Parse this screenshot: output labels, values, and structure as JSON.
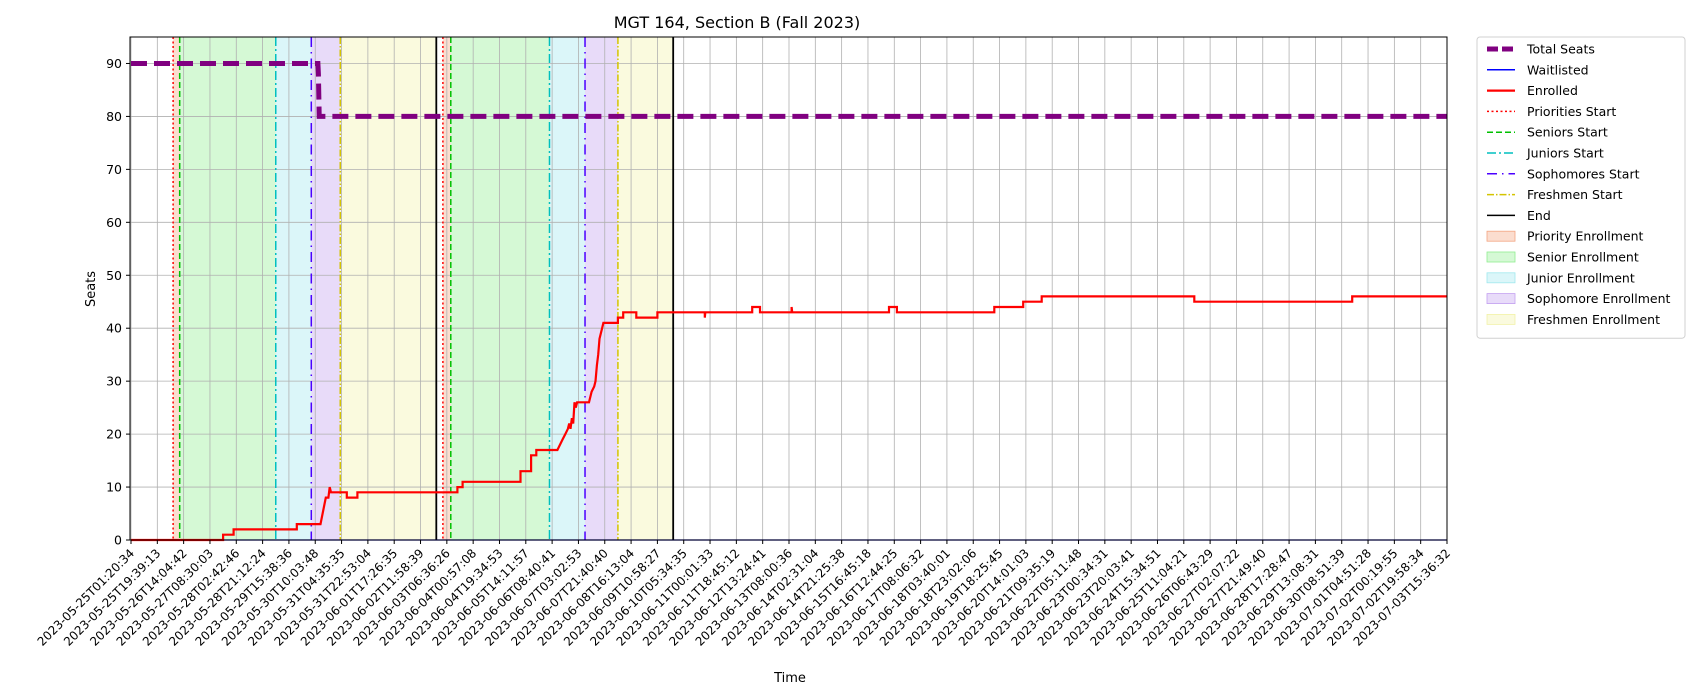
{
  "chart_data": {
    "type": "line",
    "title": "MGT 164, Section B (Fall 2023)",
    "xlabel": "Time",
    "ylabel": "Seats",
    "ylim": [
      0,
      95
    ],
    "yticks": [
      0,
      10,
      20,
      30,
      40,
      50,
      60,
      70,
      80,
      90
    ],
    "grid": true,
    "legend_position": "outside-right",
    "xtick_labels": [
      "2023-05-25T01:20:34",
      "2023-05-25T19:39:13",
      "2023-05-26T14:04:42",
      "2023-05-27T08:30:03",
      "2023-05-28T02:42:46",
      "2023-05-28T21:12:24",
      "2023-05-29T15:38:36",
      "2023-05-30T10:03:48",
      "2023-05-31T04:35:35",
      "2023-05-31T22:53:04",
      "2023-06-01T17:26:35",
      "2023-06-02T11:58:39",
      "2023-06-03T06:36:26",
      "2023-06-04T00:57:08",
      "2023-06-04T19:34:53",
      "2023-06-05T14:11:57",
      "2023-06-06T08:40:41",
      "2023-06-07T03:02:53",
      "2023-06-07T21:40:40",
      "2023-06-08T16:13:04",
      "2023-06-09T10:58:27",
      "2023-06-10T05:34:35",
      "2023-06-11T00:01:33",
      "2023-06-11T18:45:12",
      "2023-06-12T13:24:41",
      "2023-06-13T08:00:36",
      "2023-06-14T02:31:04",
      "2023-06-14T21:25:38",
      "2023-06-15T16:45:18",
      "2023-06-16T12:44:25",
      "2023-06-17T08:06:32",
      "2023-06-18T03:40:01",
      "2023-06-18T23:02:06",
      "2023-06-19T18:25:45",
      "2023-06-20T14:01:03",
      "2023-06-21T09:35:19",
      "2023-06-22T05:11:48",
      "2023-06-23T00:34:31",
      "2023-06-23T20:03:41",
      "2023-06-24T15:34:51",
      "2023-06-25T11:04:21",
      "2023-06-26T06:43:29",
      "2023-06-27T02:07:22",
      "2023-06-27T21:49:40",
      "2023-06-28T17:28:47",
      "2023-06-29T13:08:31",
      "2023-06-30T08:51:39",
      "2023-07-01T04:51:28",
      "2023-07-02T00:19:55",
      "2023-07-02T19:58:34",
      "2023-07-03T15:36:32"
    ],
    "series": [
      {
        "name": "Total Seats",
        "color": "#800080",
        "style": "dashed-thick",
        "points": [
          [
            0,
            90
          ],
          [
            7.1,
            90
          ],
          [
            7.12,
            88
          ],
          [
            7.15,
            80
          ],
          [
            50,
            80
          ]
        ]
      },
      {
        "name": "Waitlisted",
        "color": "#0000ff",
        "style": "solid-thin",
        "points": [
          [
            0,
            0
          ],
          [
            50,
            0
          ]
        ]
      },
      {
        "name": "Enrolled",
        "color": "#ff0000",
        "style": "solid-thick",
        "points": [
          [
            0,
            0
          ],
          [
            3.5,
            0
          ],
          [
            3.5,
            1
          ],
          [
            3.9,
            1
          ],
          [
            3.9,
            2
          ],
          [
            6.3,
            2
          ],
          [
            6.3,
            3
          ],
          [
            7.2,
            3
          ],
          [
            7.4,
            8
          ],
          [
            7.5,
            8
          ],
          [
            7.55,
            10
          ],
          [
            7.6,
            9
          ],
          [
            8.2,
            9
          ],
          [
            8.2,
            8
          ],
          [
            8.6,
            8
          ],
          [
            8.6,
            9
          ],
          [
            12.4,
            9
          ],
          [
            12.4,
            10
          ],
          [
            12.6,
            10
          ],
          [
            12.6,
            11
          ],
          [
            14.8,
            11
          ],
          [
            14.8,
            13
          ],
          [
            15.2,
            13
          ],
          [
            15.2,
            16
          ],
          [
            15.4,
            16
          ],
          [
            15.4,
            17
          ],
          [
            16.2,
            17
          ],
          [
            16.4,
            19
          ],
          [
            16.5,
            20
          ],
          [
            16.6,
            21
          ],
          [
            16.65,
            22
          ],
          [
            16.7,
            21
          ],
          [
            16.75,
            23
          ],
          [
            16.8,
            22
          ],
          [
            16.85,
            26
          ],
          [
            16.9,
            25
          ],
          [
            16.95,
            26
          ],
          [
            17.4,
            26
          ],
          [
            17.5,
            28
          ],
          [
            17.6,
            29
          ],
          [
            17.65,
            30
          ],
          [
            17.7,
            33
          ],
          [
            17.75,
            35
          ],
          [
            17.8,
            38
          ],
          [
            17.85,
            39
          ],
          [
            17.9,
            40
          ],
          [
            17.95,
            41
          ],
          [
            18.5,
            41
          ],
          [
            18.5,
            42
          ],
          [
            18.7,
            42
          ],
          [
            18.7,
            43
          ],
          [
            19.2,
            43
          ],
          [
            19.2,
            42
          ],
          [
            20.0,
            42
          ],
          [
            20.0,
            43
          ],
          [
            21.8,
            43
          ],
          [
            21.8,
            42
          ],
          [
            21.82,
            43
          ],
          [
            23.6,
            43
          ],
          [
            23.6,
            44
          ],
          [
            23.9,
            44
          ],
          [
            23.9,
            43
          ],
          [
            25.1,
            43
          ],
          [
            25.1,
            44
          ],
          [
            25.12,
            43
          ],
          [
            28.8,
            43
          ],
          [
            28.8,
            44
          ],
          [
            29.1,
            44
          ],
          [
            29.1,
            43
          ],
          [
            32.8,
            43
          ],
          [
            32.8,
            44
          ],
          [
            33.9,
            44
          ],
          [
            33.9,
            45
          ],
          [
            34.6,
            45
          ],
          [
            34.6,
            46
          ],
          [
            40.4,
            46
          ],
          [
            40.4,
            45
          ],
          [
            46.4,
            45
          ],
          [
            46.4,
            46
          ],
          [
            50,
            46
          ]
        ]
      }
    ],
    "phase_lines": [
      {
        "name": "Priorities Start",
        "color": "#ff0000",
        "style": "dotted",
        "x": [
          1.6,
          11.85
        ]
      },
      {
        "name": "Seniors Start",
        "color": "#00c000",
        "style": "dashed",
        "x": [
          1.85,
          12.15
        ]
      },
      {
        "name": "Juniors Start",
        "color": "#00bfbf",
        "style": "dashdot",
        "x": [
          5.5,
          15.9
        ]
      },
      {
        "name": "Sophomores Start",
        "color": "#4b00ff",
        "style": "dashdot-dense",
        "x": [
          6.85,
          17.25
        ]
      },
      {
        "name": "Freshmen Start",
        "color": "#d4c400",
        "style": "dashdot-fine",
        "x": [
          7.95,
          18.5
        ]
      },
      {
        "name": "End",
        "color": "#000000",
        "style": "solid",
        "x": [
          11.6,
          20.6
        ]
      }
    ],
    "phase_spans": [
      {
        "name": "Priority Enrollment",
        "color": "#f4a582",
        "ranges": [
          [
            1.6,
            1.85
          ],
          [
            11.85,
            12.15
          ]
        ]
      },
      {
        "name": "Senior Enrollment",
        "color": "#90ee90",
        "ranges": [
          [
            1.85,
            5.5
          ],
          [
            12.15,
            15.9
          ]
        ]
      },
      {
        "name": "Junior Enrollment",
        "color": "#a0e8ee",
        "ranges": [
          [
            5.5,
            6.85
          ],
          [
            15.9,
            17.25
          ]
        ]
      },
      {
        "name": "Sophomore Enrollment",
        "color": "#c3a0f0",
        "ranges": [
          [
            6.85,
            7.95
          ],
          [
            17.25,
            18.5
          ]
        ]
      },
      {
        "name": "Freshmen Enrollment",
        "color": "#f2f2a8",
        "ranges": [
          [
            7.95,
            11.6
          ],
          [
            18.5,
            20.6
          ]
        ]
      }
    ]
  }
}
